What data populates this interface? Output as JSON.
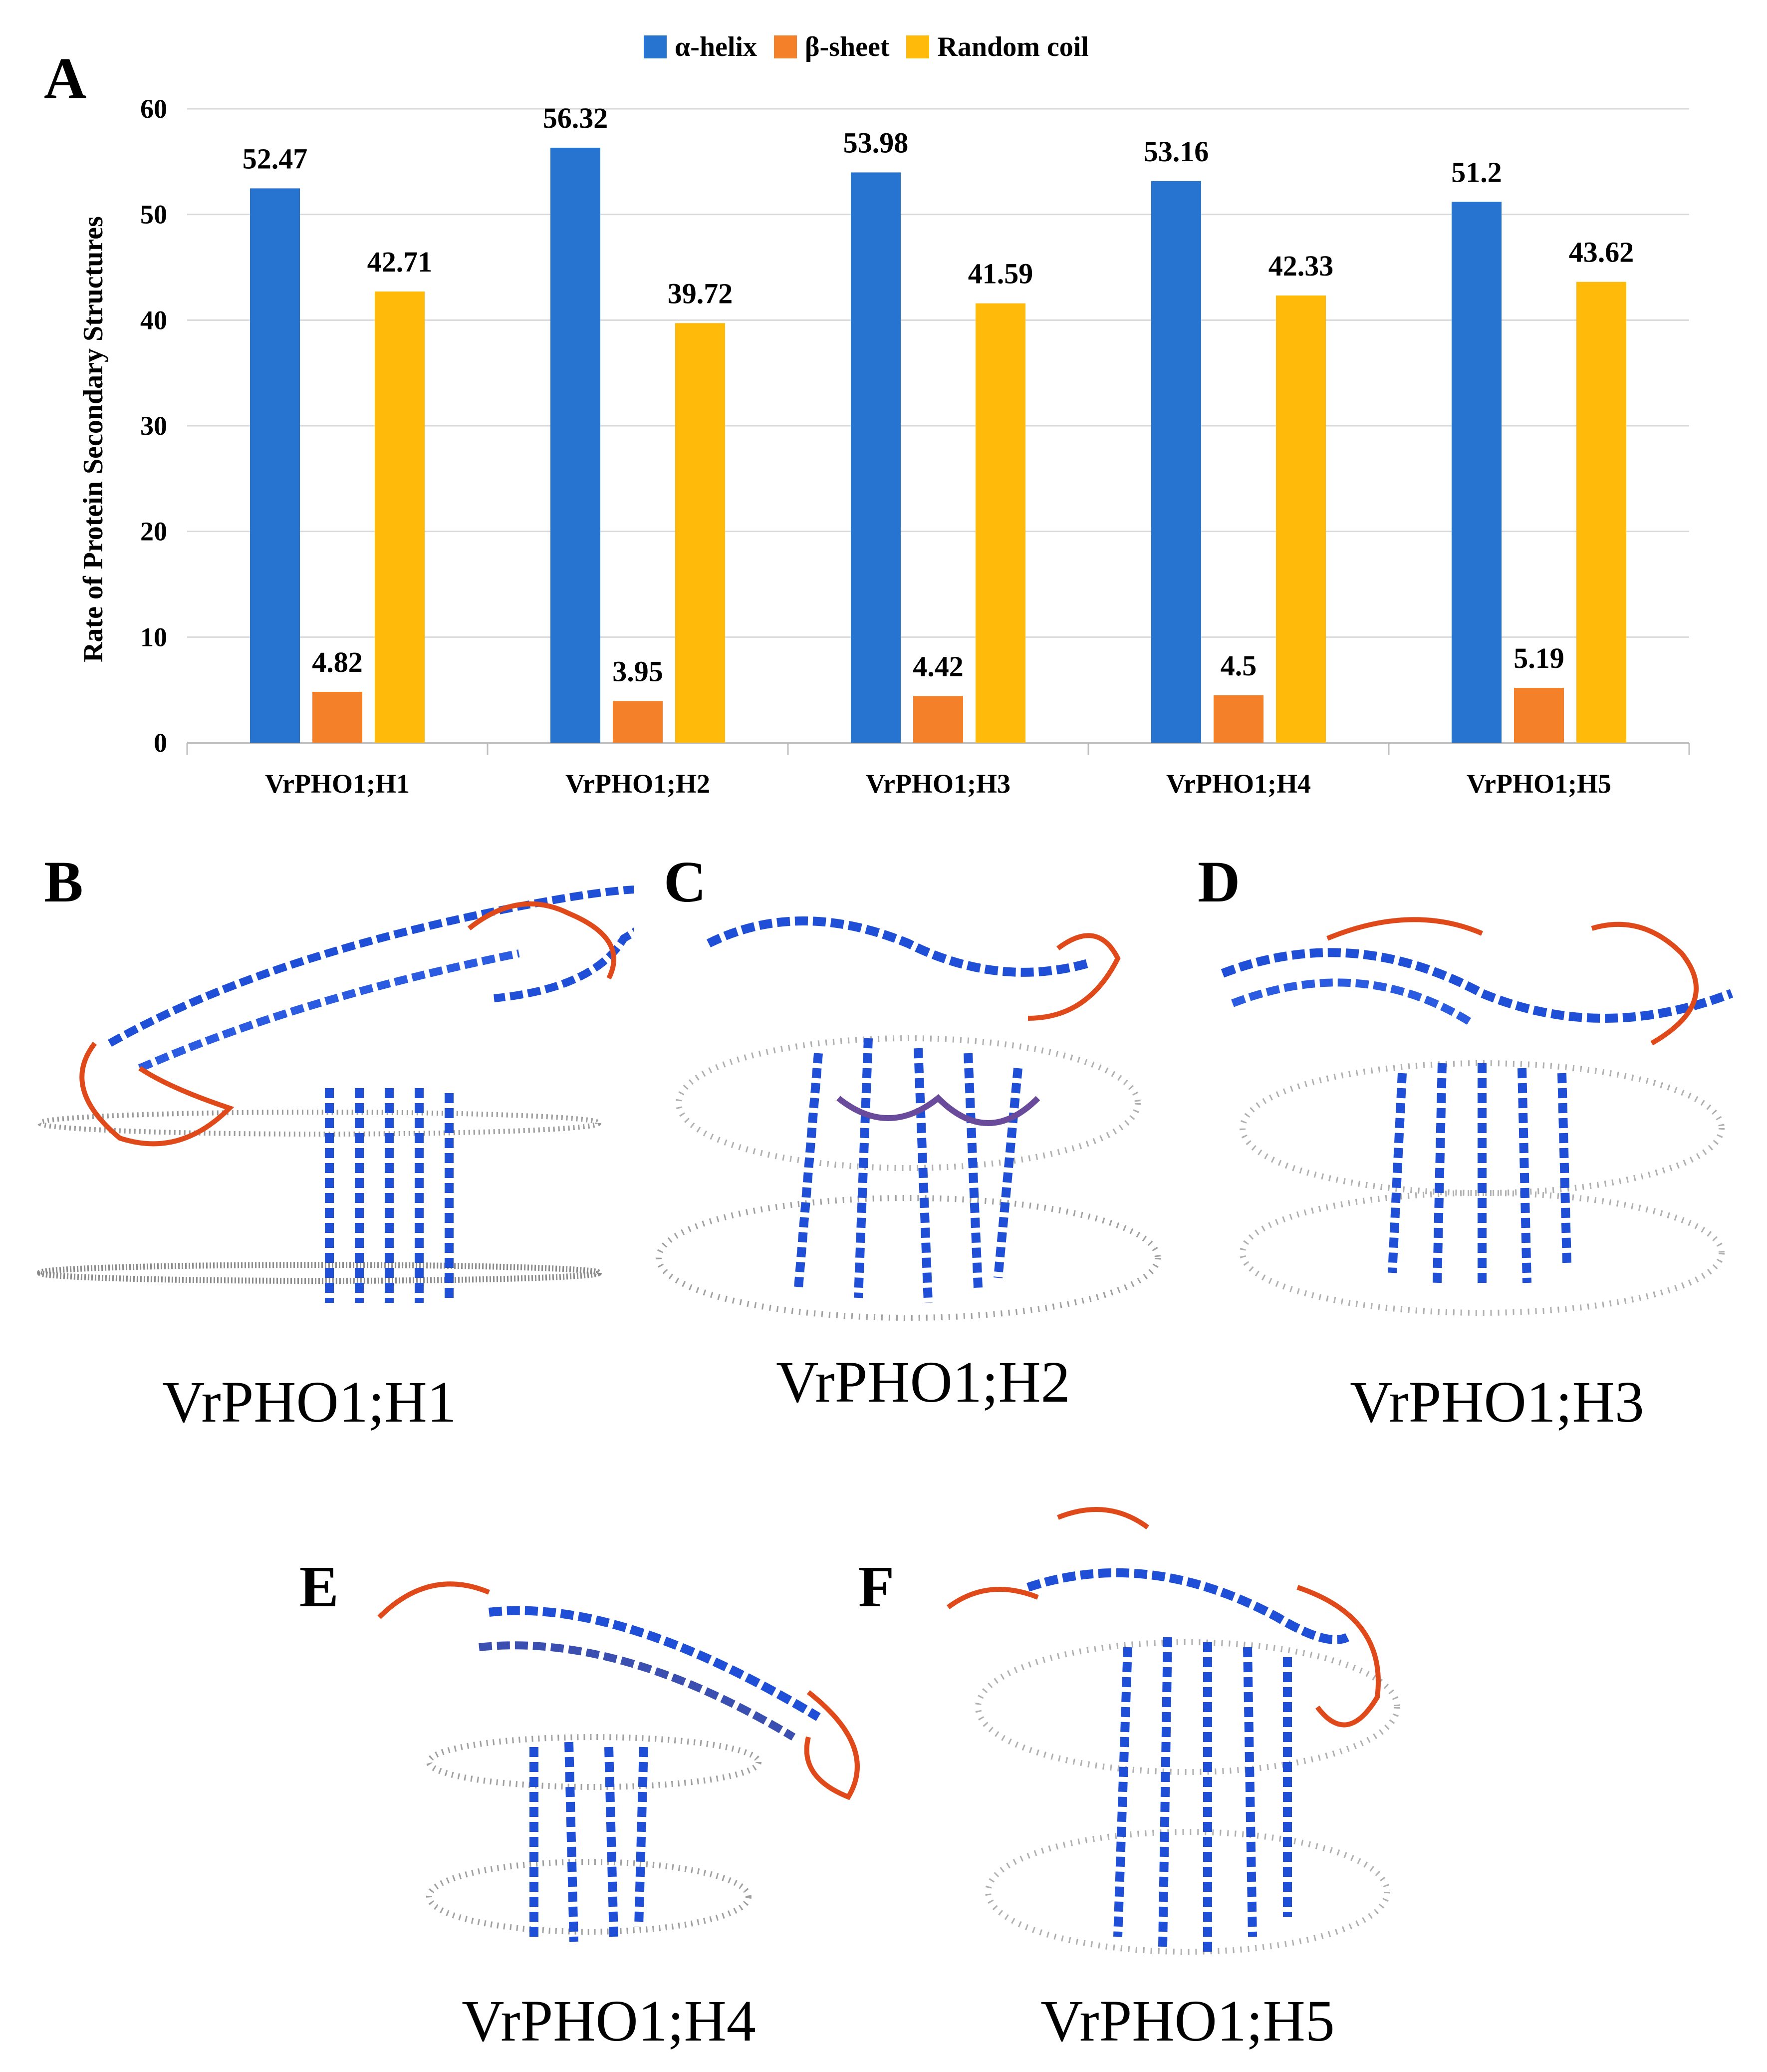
{
  "panels": {
    "A": "A",
    "B": "B",
    "C": "C",
    "D": "D",
    "E": "E",
    "F": "F"
  },
  "captions": {
    "B": "VrPHO1;H1",
    "C": "VrPHO1;H2",
    "D": "VrPHO1;H3",
    "E": "VrPHO1;H4",
    "F": "VrPHO1;H5"
  },
  "colors": {
    "helix": "#2673D0",
    "sheet": "#F5802A",
    "coil": "#FFBA0A",
    "grid": "#D9D9D9",
    "axis": "#BFBFBF",
    "ribbon_blue": "#1F4FD6",
    "ribbon_purple": "#6A4A9A",
    "ribbon_red": "#E04A1A",
    "membrane": "#9A9A9A"
  },
  "chart_data": {
    "type": "bar",
    "title": "",
    "xlabel": "",
    "ylabel": "Rate of Protein Secondary Structures",
    "ylim": [
      0,
      60
    ],
    "yticks": [
      0,
      10,
      20,
      30,
      40,
      50,
      60
    ],
    "grid": true,
    "legend_position": "top-center",
    "categories": [
      "VrPHO1;H1",
      "VrPHO1;H2",
      "VrPHO1;H3",
      "VrPHO1;H4",
      "VrPHO1;H5"
    ],
    "series": [
      {
        "name": "α-helix",
        "values": [
          52.47,
          56.32,
          53.98,
          53.16,
          51.2
        ],
        "labels": [
          "52.47",
          "56.32",
          "53.98",
          "53.16",
          "51.2"
        ]
      },
      {
        "name": "β-sheet",
        "values": [
          4.82,
          3.95,
          4.42,
          4.5,
          5.19
        ],
        "labels": [
          "4.82",
          "3.95",
          "4.42",
          "4.5",
          "5.19"
        ]
      },
      {
        "name": "Random coil",
        "values": [
          42.71,
          39.72,
          41.59,
          42.33,
          43.62
        ],
        "labels": [
          "42.71",
          "39.72",
          "41.59",
          "42.33",
          "43.62"
        ]
      }
    ]
  }
}
